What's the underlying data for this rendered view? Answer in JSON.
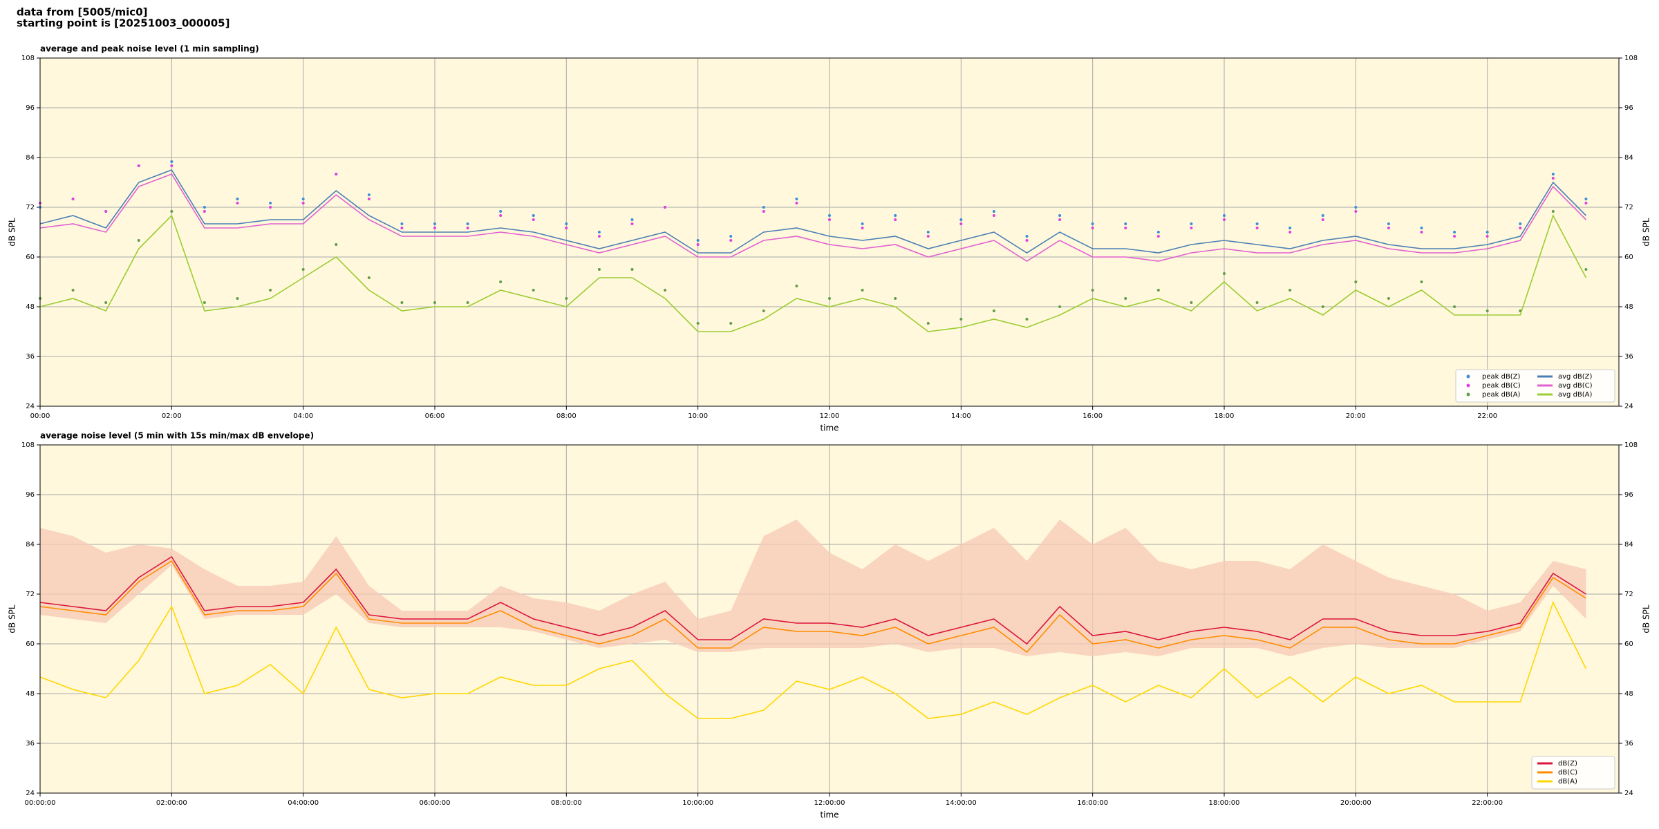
{
  "header": {
    "source": "data from [5005/mic0]",
    "start": "starting point is [20251003_000005]"
  },
  "chart_data": [
    {
      "type": "line",
      "title": "average and peak noise level (1 min sampling)",
      "x_label": "time",
      "y_label": "dB SPL",
      "xlim": [
        0,
        24
      ],
      "ylim": [
        24,
        108
      ],
      "grid": true,
      "background": "#fff8dc",
      "legend": "lower right",
      "legend_columns": 2,
      "xticks": [
        {
          "value": 0,
          "label": "00:00"
        },
        {
          "value": 2,
          "label": "02:00"
        },
        {
          "value": 4,
          "label": "04:00"
        },
        {
          "value": 6,
          "label": "06:00"
        },
        {
          "value": 8,
          "label": "08:00"
        },
        {
          "value": 10,
          "label": "10:00"
        },
        {
          "value": 12,
          "label": "12:00"
        },
        {
          "value": 14,
          "label": "14:00"
        },
        {
          "value": 16,
          "label": "16:00"
        },
        {
          "value": 18,
          "label": "18:00"
        },
        {
          "value": 20,
          "label": "20:00"
        },
        {
          "value": 22,
          "label": "22:00"
        }
      ],
      "yticks": [
        24,
        36,
        48,
        60,
        72,
        84,
        96,
        108
      ],
      "x": [
        0,
        0.5,
        1,
        1.5,
        2,
        2.5,
        3,
        3.5,
        4,
        4.5,
        5,
        5.5,
        6,
        6.5,
        7,
        7.5,
        8,
        8.5,
        9,
        9.5,
        10,
        10.5,
        11,
        11.5,
        12,
        12.5,
        13,
        13.5,
        14,
        14.5,
        15,
        15.5,
        16,
        16.5,
        17,
        17.5,
        18,
        18.5,
        19,
        19.5,
        20,
        20.5,
        21,
        21.5,
        22,
        22.5,
        23,
        23.5
      ],
      "series": [
        {
          "name": "peak dB(Z)",
          "style": "markers",
          "color": "#3a8fd9",
          "values": [
            72,
            74,
            71,
            82,
            83,
            72,
            74,
            73,
            74,
            80,
            75,
            68,
            68,
            68,
            71,
            70,
            68,
            66,
            69,
            72,
            64,
            65,
            72,
            74,
            70,
            68,
            70,
            66,
            69,
            71,
            65,
            70,
            68,
            68,
            66,
            68,
            70,
            68,
            67,
            70,
            72,
            68,
            67,
            66,
            66,
            68,
            80,
            74
          ]
        },
        {
          "name": "peak dB(C)",
          "style": "markers",
          "color": "#e040e0",
          "values": [
            73,
            74,
            71,
            82,
            82,
            71,
            73,
            72,
            73,
            80,
            74,
            67,
            67,
            67,
            70,
            69,
            67,
            65,
            68,
            72,
            63,
            64,
            71,
            73,
            69,
            67,
            69,
            65,
            68,
            70,
            64,
            69,
            67,
            67,
            65,
            67,
            69,
            67,
            66,
            69,
            71,
            67,
            66,
            65,
            65,
            67,
            79,
            73
          ]
        },
        {
          "name": "peak dB(A)",
          "style": "markers",
          "color": "#5f9e4a",
          "values": [
            50,
            52,
            49,
            64,
            71,
            49,
            50,
            52,
            57,
            63,
            55,
            49,
            49,
            49,
            54,
            52,
            50,
            57,
            57,
            52,
            44,
            44,
            47,
            53,
            50,
            52,
            50,
            44,
            45,
            47,
            45,
            48,
            52,
            50,
            52,
            49,
            56,
            49,
            52,
            48,
            54,
            50,
            54,
            48,
            47,
            47,
            71,
            57
          ]
        },
        {
          "name": "avg dB(Z)",
          "style": "line",
          "color": "#4a7fb5",
          "values": [
            68,
            70,
            67,
            78,
            81,
            68,
            68,
            69,
            69,
            76,
            70,
            66,
            66,
            66,
            67,
            66,
            64,
            62,
            64,
            66,
            61,
            61,
            66,
            67,
            65,
            64,
            65,
            62,
            64,
            66,
            61,
            66,
            62,
            62,
            61,
            63,
            64,
            63,
            62,
            64,
            65,
            63,
            62,
            62,
            63,
            65,
            78,
            70
          ]
        },
        {
          "name": "avg dB(C)",
          "style": "line",
          "color": "#e060d0",
          "values": [
            67,
            68,
            66,
            77,
            80,
            67,
            67,
            68,
            68,
            75,
            69,
            65,
            65,
            65,
            66,
            65,
            63,
            61,
            63,
            65,
            60,
            60,
            64,
            65,
            63,
            62,
            63,
            60,
            62,
            64,
            59,
            64,
            60,
            60,
            59,
            61,
            62,
            61,
            61,
            63,
            64,
            62,
            61,
            61,
            62,
            64,
            77,
            69
          ]
        },
        {
          "name": "avg dB(A)",
          "style": "line",
          "color": "#9acd32",
          "values": [
            48,
            50,
            47,
            62,
            70,
            47,
            48,
            50,
            55,
            60,
            52,
            47,
            48,
            48,
            52,
            50,
            48,
            55,
            55,
            50,
            42,
            42,
            45,
            50,
            48,
            50,
            48,
            42,
            43,
            45,
            43,
            46,
            50,
            48,
            50,
            47,
            54,
            47,
            50,
            46,
            52,
            48,
            52,
            46,
            46,
            46,
            70,
            55
          ]
        }
      ]
    },
    {
      "type": "line",
      "title": "average noise level (5 min with 15s min/max dB envelope)",
      "x_label": "time",
      "y_label": "dB SPL",
      "xlim": [
        0,
        24
      ],
      "ylim": [
        24,
        108
      ],
      "grid": true,
      "background": "#fff8dc",
      "legend": "lower right",
      "legend_columns": 1,
      "xticks": [
        {
          "value": 0,
          "label": "00:00:00"
        },
        {
          "value": 2,
          "label": "02:00:00"
        },
        {
          "value": 4,
          "label": "04:00:00"
        },
        {
          "value": 6,
          "label": "06:00:00"
        },
        {
          "value": 8,
          "label": "08:00:00"
        },
        {
          "value": 10,
          "label": "10:00:00"
        },
        {
          "value": 12,
          "label": "12:00:00"
        },
        {
          "value": 14,
          "label": "14:00:00"
        },
        {
          "value": 16,
          "label": "16:00:00"
        },
        {
          "value": 18,
          "label": "18:00:00"
        },
        {
          "value": 20,
          "label": "20:00:00"
        },
        {
          "value": 22,
          "label": "22:00:00"
        }
      ],
      "yticks": [
        24,
        36,
        48,
        60,
        72,
        84,
        96,
        108
      ],
      "x": [
        0,
        0.5,
        1,
        1.5,
        2,
        2.5,
        3,
        3.5,
        4,
        4.5,
        5,
        5.5,
        6,
        6.5,
        7,
        7.5,
        8,
        8.5,
        9,
        9.5,
        10,
        10.5,
        11,
        11.5,
        12,
        12.5,
        13,
        13.5,
        14,
        14.5,
        15,
        15.5,
        16,
        16.5,
        17,
        17.5,
        18,
        18.5,
        19,
        19.5,
        20,
        20.5,
        21,
        21.5,
        22,
        22.5,
        23,
        23.5
      ],
      "envelope": {
        "color": "#f7c9b5",
        "high": [
          88,
          86,
          82,
          84,
          83,
          78,
          74,
          74,
          75,
          86,
          74,
          68,
          68,
          68,
          74,
          71,
          70,
          68,
          72,
          75,
          66,
          68,
          86,
          90,
          82,
          78,
          84,
          80,
          84,
          88,
          80,
          90,
          84,
          88,
          80,
          78,
          80,
          80,
          78,
          84,
          80,
          76,
          74,
          72,
          68,
          70,
          80,
          78
        ],
        "low": [
          67,
          66,
          65,
          72,
          79,
          66,
          67,
          67,
          67,
          72,
          65,
          64,
          64,
          64,
          64,
          63,
          61,
          59,
          60,
          61,
          58,
          58,
          59,
          59,
          59,
          59,
          60,
          58,
          59,
          59,
          57,
          58,
          57,
          58,
          57,
          59,
          59,
          59,
          57,
          59,
          60,
          59,
          59,
          59,
          61,
          63,
          74,
          66
        ]
      },
      "series": [
        {
          "name": "dB(Z)",
          "style": "line",
          "color": "#dc143c",
          "values": [
            70,
            69,
            68,
            76,
            81,
            68,
            69,
            69,
            70,
            78,
            67,
            66,
            66,
            66,
            70,
            66,
            64,
            62,
            64,
            68,
            61,
            61,
            66,
            65,
            65,
            64,
            66,
            62,
            64,
            66,
            60,
            69,
            62,
            63,
            61,
            63,
            64,
            63,
            61,
            66,
            66,
            63,
            62,
            62,
            63,
            65,
            77,
            72
          ]
        },
        {
          "name": "dB(C)",
          "style": "line",
          "color": "#ff8c00",
          "values": [
            69,
            68,
            67,
            75,
            80,
            67,
            68,
            68,
            69,
            77,
            66,
            65,
            65,
            65,
            68,
            64,
            62,
            60,
            62,
            66,
            59,
            59,
            64,
            63,
            63,
            62,
            64,
            60,
            62,
            64,
            58,
            67,
            60,
            61,
            59,
            61,
            62,
            61,
            59,
            64,
            64,
            61,
            60,
            60,
            62,
            64,
            76,
            71
          ]
        },
        {
          "name": "dB(A)",
          "style": "line",
          "color": "#ffd700",
          "values": [
            52,
            49,
            47,
            56,
            69,
            48,
            50,
            55,
            48,
            64,
            49,
            47,
            48,
            48,
            52,
            50,
            50,
            54,
            56,
            48,
            42,
            42,
            44,
            51,
            49,
            52,
            48,
            42,
            43,
            46,
            43,
            47,
            50,
            46,
            50,
            47,
            54,
            47,
            52,
            46,
            52,
            48,
            50,
            46,
            46,
            46,
            70,
            54
          ]
        }
      ]
    }
  ]
}
